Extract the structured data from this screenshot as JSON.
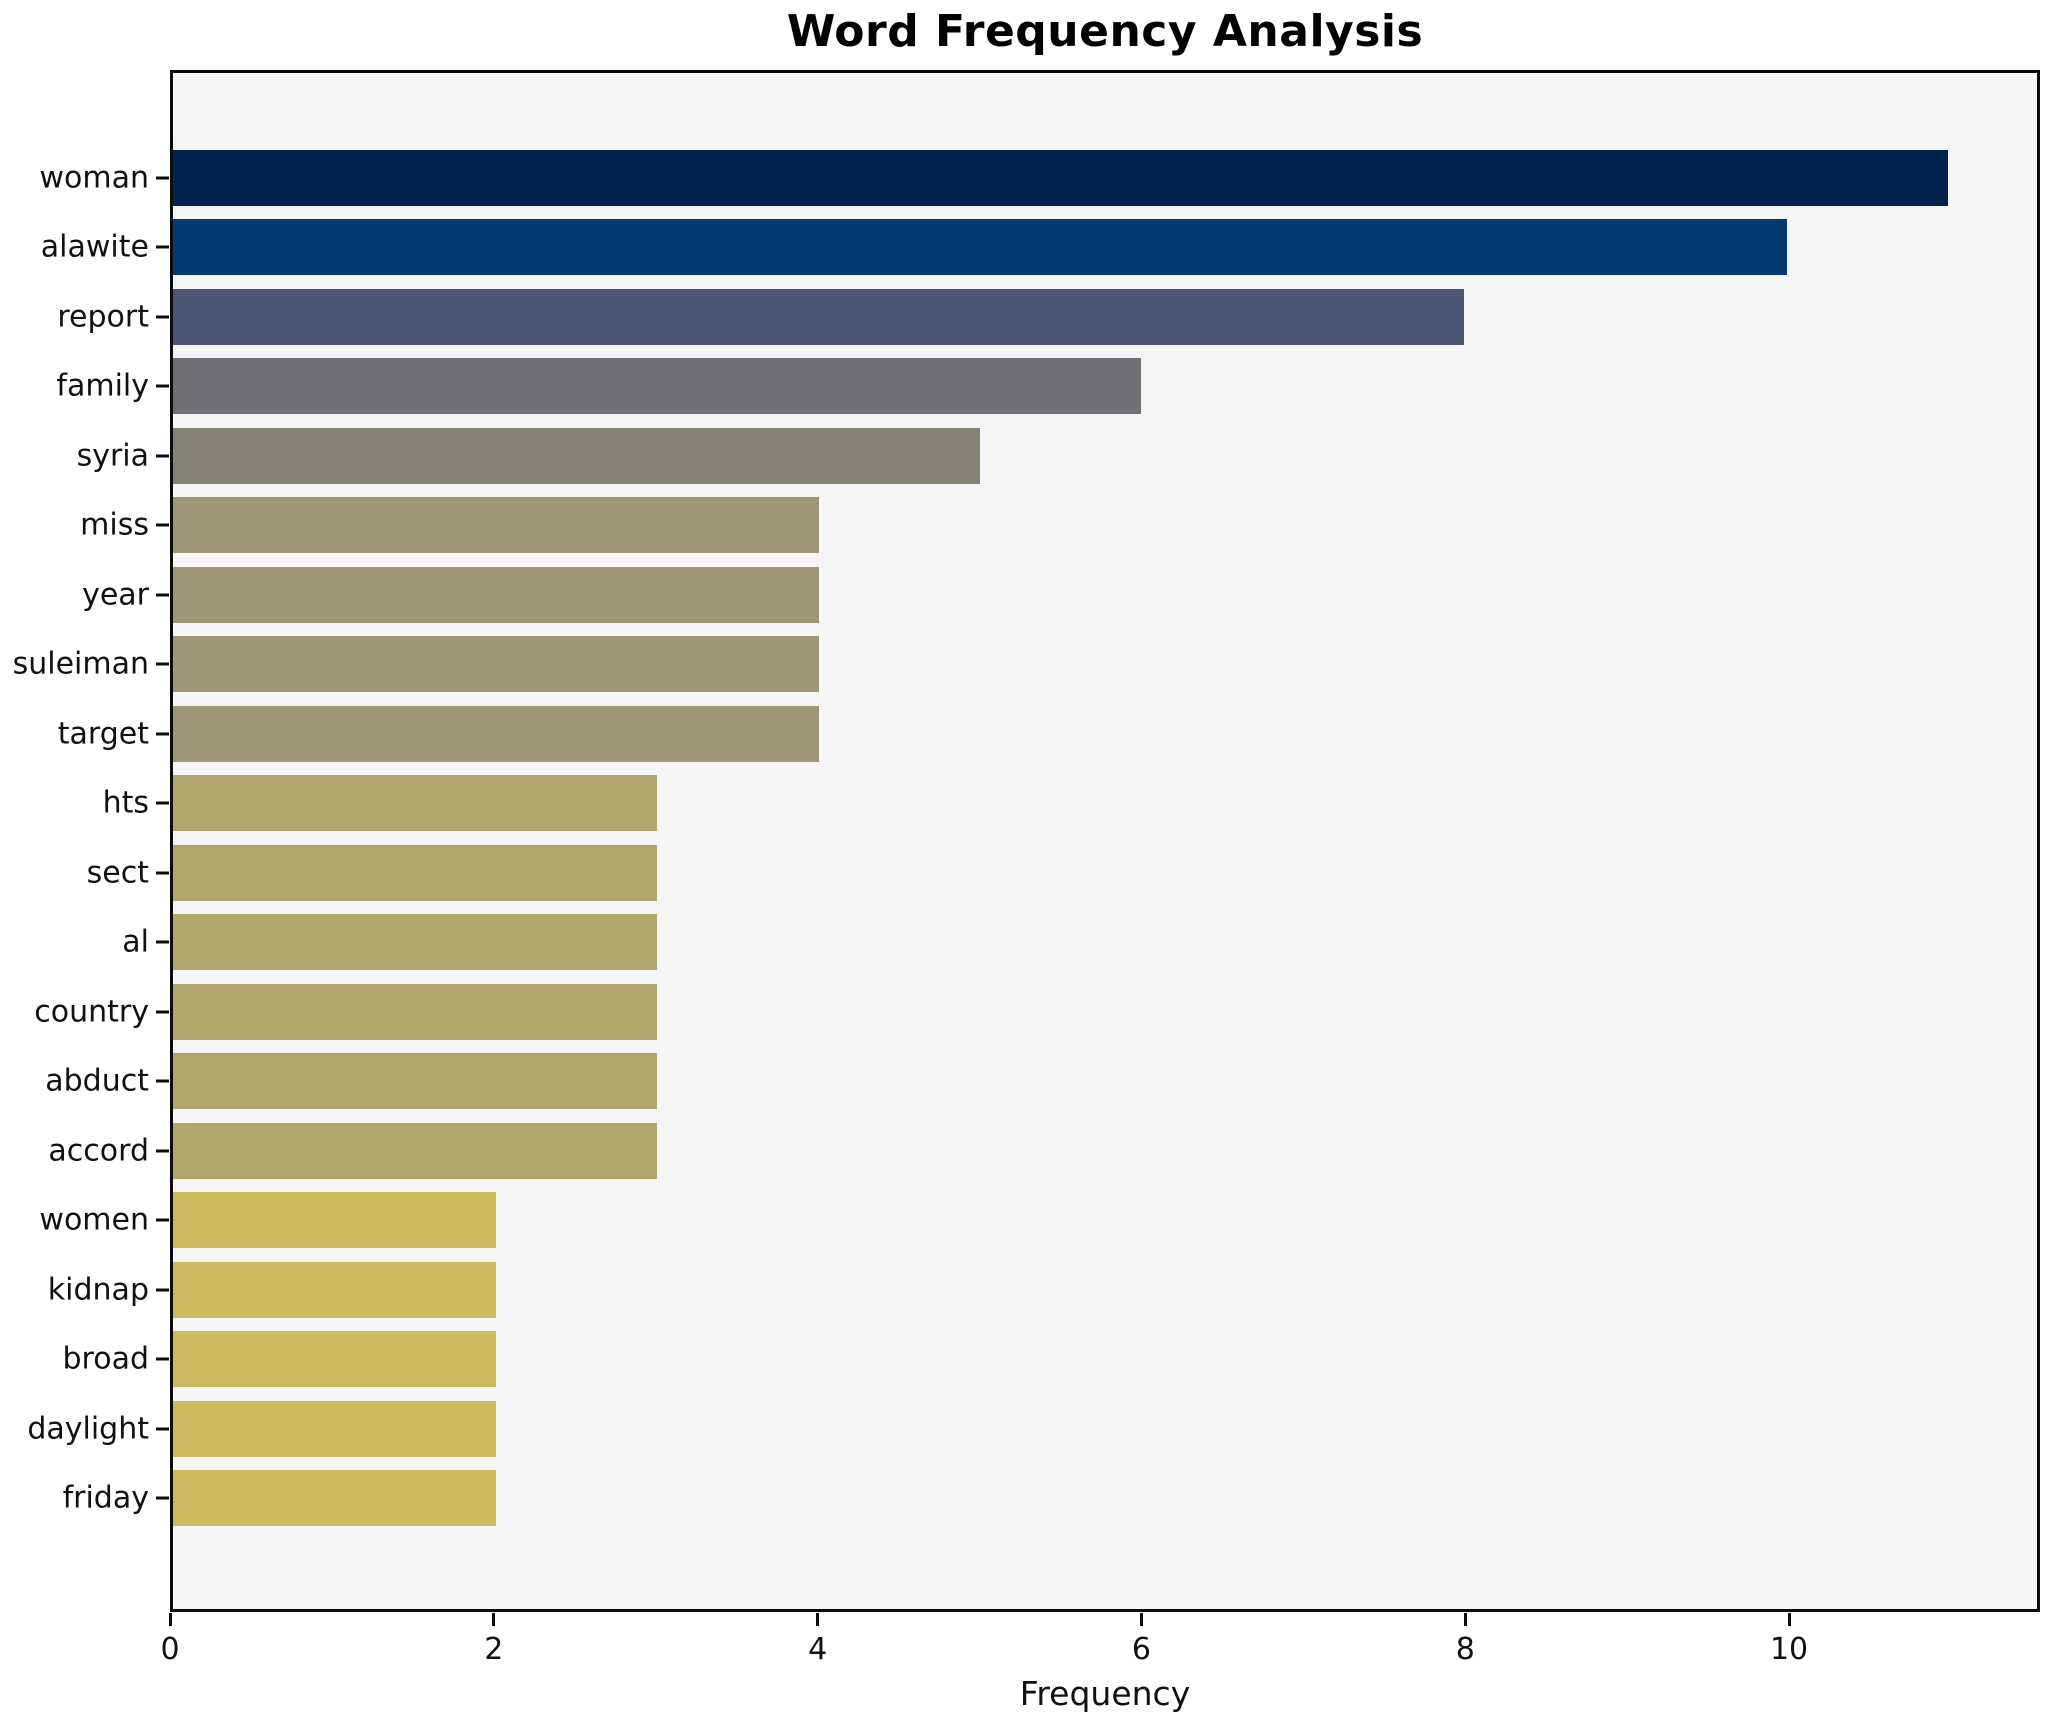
{
  "chart_data": {
    "type": "bar",
    "orientation": "horizontal",
    "title": "Word Frequency Analysis",
    "xlabel": "Frequency",
    "ylabel": "",
    "categories": [
      "woman",
      "alawite",
      "report",
      "family",
      "syria",
      "miss",
      "year",
      "suleiman",
      "target",
      "hts",
      "sect",
      "al",
      "country",
      "abduct",
      "accord",
      "women",
      "kidnap",
      "broad",
      "daylight",
      "friday"
    ],
    "values": [
      11,
      10,
      8,
      6,
      5,
      4,
      4,
      4,
      4,
      3,
      3,
      3,
      3,
      3,
      3,
      2,
      2,
      2,
      2,
      2
    ],
    "bar_colors": [
      "#00224e",
      "#053a75",
      "#4b5673",
      "#707174",
      "#858276",
      "#9e9674",
      "#9e9674",
      "#9e9674",
      "#9e9674",
      "#b1a66c",
      "#b1a66c",
      "#b1a66c",
      "#b1a66c",
      "#b1a66c",
      "#b1a66c",
      "#cdba5f",
      "#cdba5f",
      "#cdba5f",
      "#cdba5f",
      "#cdba5f"
    ],
    "xlim": [
      0,
      11.55
    ],
    "xticks": [
      0,
      2,
      4,
      6,
      8,
      10
    ],
    "grid": false,
    "legend": null,
    "colormap": "cividis-reversed-by-value",
    "plot_bg": "#f5f5f6",
    "figure_bg": "#ffffff",
    "spine_color": "#0c0c0c",
    "text_color": "#111111"
  }
}
